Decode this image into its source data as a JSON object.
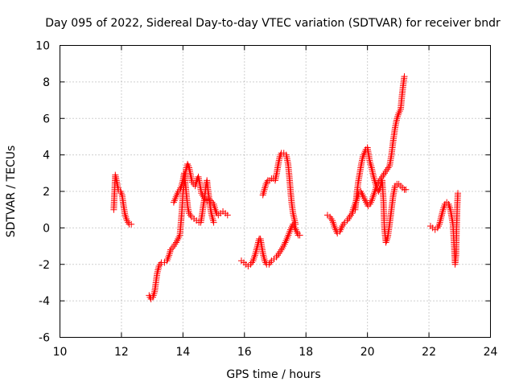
{
  "chart_data": {
    "type": "scatter",
    "title": "Day 095 of 2022, Sidereal Day-to-day VTEC variation (SDTVAR) for receiver bndr",
    "xlabel": "GPS time / hours",
    "ylabel": "SDTVAR / TECUs",
    "xlim": [
      10,
      24
    ],
    "ylim": [
      -6,
      10
    ],
    "xticks": [
      "10",
      "12",
      "14",
      "16",
      "18",
      "20",
      "22",
      "24"
    ],
    "yticks": [
      "-6",
      "-4",
      "-2",
      "0",
      "2",
      "4",
      "6",
      "8",
      "10"
    ],
    "grid": true,
    "marker": "+",
    "series": [
      {
        "name": "SDTVAR",
        "color": "#ff0000",
        "segments": [
          [
            [
              11.75,
              1.0
            ],
            [
              11.8,
              2.9
            ],
            [
              11.85,
              2.5
            ],
            [
              11.9,
              2.1
            ],
            [
              11.97,
              2.0
            ],
            [
              12.02,
              1.8
            ],
            [
              12.07,
              1.2
            ],
            [
              12.12,
              0.7
            ],
            [
              12.18,
              0.4
            ],
            [
              12.25,
              0.2
            ],
            [
              12.32,
              0.2
            ]
          ],
          [
            [
              12.9,
              -3.7
            ],
            [
              12.96,
              -3.9
            ],
            [
              13.02,
              -3.8
            ],
            [
              13.08,
              -3.5
            ],
            [
              13.12,
              -3.0
            ],
            [
              13.16,
              -2.5
            ],
            [
              13.22,
              -2.1
            ],
            [
              13.3,
              -1.9
            ],
            [
              13.4,
              -1.9
            ],
            [
              13.48,
              -1.8
            ],
            [
              13.55,
              -1.5
            ],
            [
              13.6,
              -1.2
            ],
            [
              13.7,
              -1.0
            ],
            [
              13.78,
              -0.8
            ],
            [
              13.84,
              -0.6
            ],
            [
              13.9,
              -0.4
            ],
            [
              13.96,
              0.8
            ],
            [
              14.0,
              1.9
            ],
            [
              14.05,
              2.6
            ],
            [
              14.1,
              3.2
            ],
            [
              14.15,
              3.5
            ],
            [
              14.2,
              3.3
            ],
            [
              14.25,
              2.9
            ],
            [
              14.3,
              2.5
            ],
            [
              14.35,
              2.4
            ],
            [
              14.4,
              2.3
            ],
            [
              14.45,
              2.6
            ],
            [
              14.5,
              2.8
            ],
            [
              14.55,
              2.4
            ],
            [
              14.6,
              1.9
            ],
            [
              14.7,
              1.6
            ],
            [
              14.8,
              1.5
            ],
            [
              14.9,
              1.5
            ],
            [
              15.0,
              1.3
            ],
            [
              15.05,
              1.0
            ],
            [
              15.1,
              0.8
            ],
            [
              15.15,
              0.7
            ],
            [
              15.22,
              0.8
            ],
            [
              15.3,
              0.9
            ],
            [
              15.38,
              0.8
            ],
            [
              15.45,
              0.7
            ]
          ],
          [
            [
              13.7,
              1.4
            ],
            [
              13.75,
              1.6
            ],
            [
              13.8,
              1.8
            ],
            [
              13.85,
              2.0
            ],
            [
              13.9,
              2.1
            ],
            [
              13.95,
              2.3
            ],
            [
              14.0,
              2.6
            ],
            [
              14.04,
              3.0
            ],
            [
              14.08,
              2.4
            ],
            [
              14.12,
              1.7
            ],
            [
              14.16,
              1.1
            ],
            [
              14.2,
              0.8
            ],
            [
              14.28,
              0.6
            ],
            [
              14.36,
              0.5
            ],
            [
              14.44,
              0.4
            ],
            [
              14.52,
              0.3
            ],
            [
              14.58,
              0.3
            ],
            [
              14.62,
              0.7
            ],
            [
              14.66,
              1.2
            ],
            [
              14.7,
              1.6
            ],
            [
              14.74,
              2.2
            ],
            [
              14.78,
              2.6
            ],
            [
              14.82,
              2.0
            ],
            [
              14.86,
              1.5
            ],
            [
              14.9,
              1.0
            ],
            [
              14.95,
              0.6
            ],
            [
              15.0,
              0.3
            ]
          ],
          [
            [
              15.9,
              -1.8
            ],
            [
              15.98,
              -1.9
            ],
            [
              16.05,
              -2.0
            ],
            [
              16.12,
              -2.1
            ],
            [
              16.2,
              -2.0
            ],
            [
              16.28,
              -1.8
            ],
            [
              16.36,
              -1.4
            ],
            [
              16.42,
              -1.0
            ],
            [
              16.48,
              -0.6
            ],
            [
              16.52,
              -0.6
            ],
            [
              16.56,
              -1.0
            ],
            [
              16.6,
              -1.4
            ],
            [
              16.66,
              -1.8
            ],
            [
              16.72,
              -2.0
            ],
            [
              16.8,
              -2.0
            ],
            [
              16.88,
              -1.8
            ],
            [
              16.96,
              -1.7
            ],
            [
              17.04,
              -1.6
            ],
            [
              17.12,
              -1.4
            ],
            [
              17.2,
              -1.2
            ],
            [
              17.3,
              -0.9
            ],
            [
              17.38,
              -0.6
            ],
            [
              17.45,
              -0.3
            ],
            [
              17.52,
              0.0
            ],
            [
              17.58,
              0.2
            ],
            [
              17.64,
              0.0
            ],
            [
              17.7,
              -0.2
            ],
            [
              17.75,
              -0.4
            ],
            [
              17.8,
              -0.4
            ]
          ],
          [
            [
              16.6,
              1.8
            ],
            [
              16.65,
              2.1
            ],
            [
              16.7,
              2.4
            ],
            [
              16.76,
              2.6
            ],
            [
              16.82,
              2.6
            ],
            [
              16.88,
              2.7
            ],
            [
              16.94,
              2.7
            ],
            [
              17.0,
              2.6
            ],
            [
              17.05,
              3.0
            ],
            [
              17.1,
              3.5
            ],
            [
              17.15,
              3.9
            ],
            [
              17.2,
              4.1
            ],
            [
              17.28,
              4.1
            ],
            [
              17.36,
              4.0
            ],
            [
              17.42,
              3.5
            ],
            [
              17.46,
              2.8
            ],
            [
              17.5,
              2.0
            ],
            [
              17.54,
              1.3
            ],
            [
              17.58,
              0.8
            ],
            [
              17.62,
              0.5
            ],
            [
              17.66,
              0.2
            ]
          ],
          [
            [
              18.7,
              0.7
            ],
            [
              18.78,
              0.6
            ],
            [
              18.86,
              0.4
            ],
            [
              18.94,
              0.0
            ],
            [
              19.02,
              -0.3
            ],
            [
              19.1,
              -0.2
            ],
            [
              19.18,
              0.1
            ],
            [
              19.26,
              0.3
            ],
            [
              19.34,
              0.4
            ],
            [
              19.42,
              0.6
            ],
            [
              19.5,
              0.8
            ],
            [
              19.55,
              1.1
            ],
            [
              19.6,
              1.3
            ],
            [
              19.66,
              1.6
            ],
            [
              19.72,
              1.9
            ],
            [
              19.78,
              2.0
            ],
            [
              19.84,
              1.8
            ],
            [
              19.9,
              1.6
            ],
            [
              19.96,
              1.4
            ],
            [
              20.02,
              1.2
            ],
            [
              20.08,
              1.3
            ],
            [
              20.14,
              1.5
            ],
            [
              20.2,
              1.8
            ],
            [
              20.26,
              2.1
            ],
            [
              20.32,
              2.4
            ],
            [
              20.4,
              2.6
            ],
            [
              20.48,
              2.8
            ],
            [
              20.56,
              3.0
            ],
            [
              20.64,
              3.2
            ],
            [
              20.72,
              3.4
            ],
            [
              20.78,
              4.0
            ],
            [
              20.84,
              4.8
            ],
            [
              20.9,
              5.5
            ],
            [
              20.96,
              6.0
            ],
            [
              21.02,
              6.3
            ],
            [
              21.08,
              6.5
            ],
            [
              21.12,
              7.2
            ],
            [
              21.16,
              7.8
            ],
            [
              21.2,
              8.3
            ]
          ],
          [
            [
              19.6,
              1.0
            ],
            [
              19.65,
              1.8
            ],
            [
              19.7,
              2.5
            ],
            [
              19.75,
              3.0
            ],
            [
              19.8,
              3.5
            ],
            [
              19.85,
              3.9
            ],
            [
              19.9,
              4.1
            ],
            [
              19.95,
              4.3
            ],
            [
              20.0,
              4.4
            ],
            [
              20.04,
              4.0
            ],
            [
              20.08,
              3.6
            ],
            [
              20.12,
              3.4
            ],
            [
              20.16,
              3.1
            ],
            [
              20.2,
              2.8
            ],
            [
              20.25,
              2.5
            ],
            [
              20.3,
              2.2
            ],
            [
              20.36,
              2.0
            ],
            [
              20.42,
              2.2
            ],
            [
              20.48,
              2.6
            ],
            [
              20.52,
              1.5
            ],
            [
              20.55,
              0.0
            ],
            [
              20.6,
              -0.8
            ],
            [
              20.66,
              -0.5
            ],
            [
              20.72,
              0.2
            ],
            [
              20.78,
              1.0
            ],
            [
              20.84,
              1.8
            ],
            [
              20.9,
              2.3
            ],
            [
              20.96,
              2.4
            ],
            [
              21.02,
              2.4
            ],
            [
              21.08,
              2.3
            ],
            [
              21.14,
              2.2
            ],
            [
              21.2,
              2.1
            ],
            [
              21.25,
              2.1
            ]
          ],
          [
            [
              22.05,
              0.1
            ],
            [
              22.12,
              0.0
            ],
            [
              22.2,
              -0.1
            ],
            [
              22.28,
              0.0
            ],
            [
              22.34,
              0.2
            ],
            [
              22.4,
              0.6
            ],
            [
              22.46,
              1.0
            ],
            [
              22.52,
              1.3
            ],
            [
              22.58,
              1.4
            ],
            [
              22.64,
              1.3
            ],
            [
              22.7,
              1.0
            ],
            [
              22.74,
              0.6
            ],
            [
              22.78,
              0.2
            ],
            [
              22.82,
              -1.0
            ],
            [
              22.85,
              -2.0
            ],
            [
              22.88,
              -1.5
            ],
            [
              22.9,
              0.0
            ],
            [
              22.92,
              1.2
            ],
            [
              22.94,
              1.9
            ]
          ]
        ]
      }
    ]
  }
}
